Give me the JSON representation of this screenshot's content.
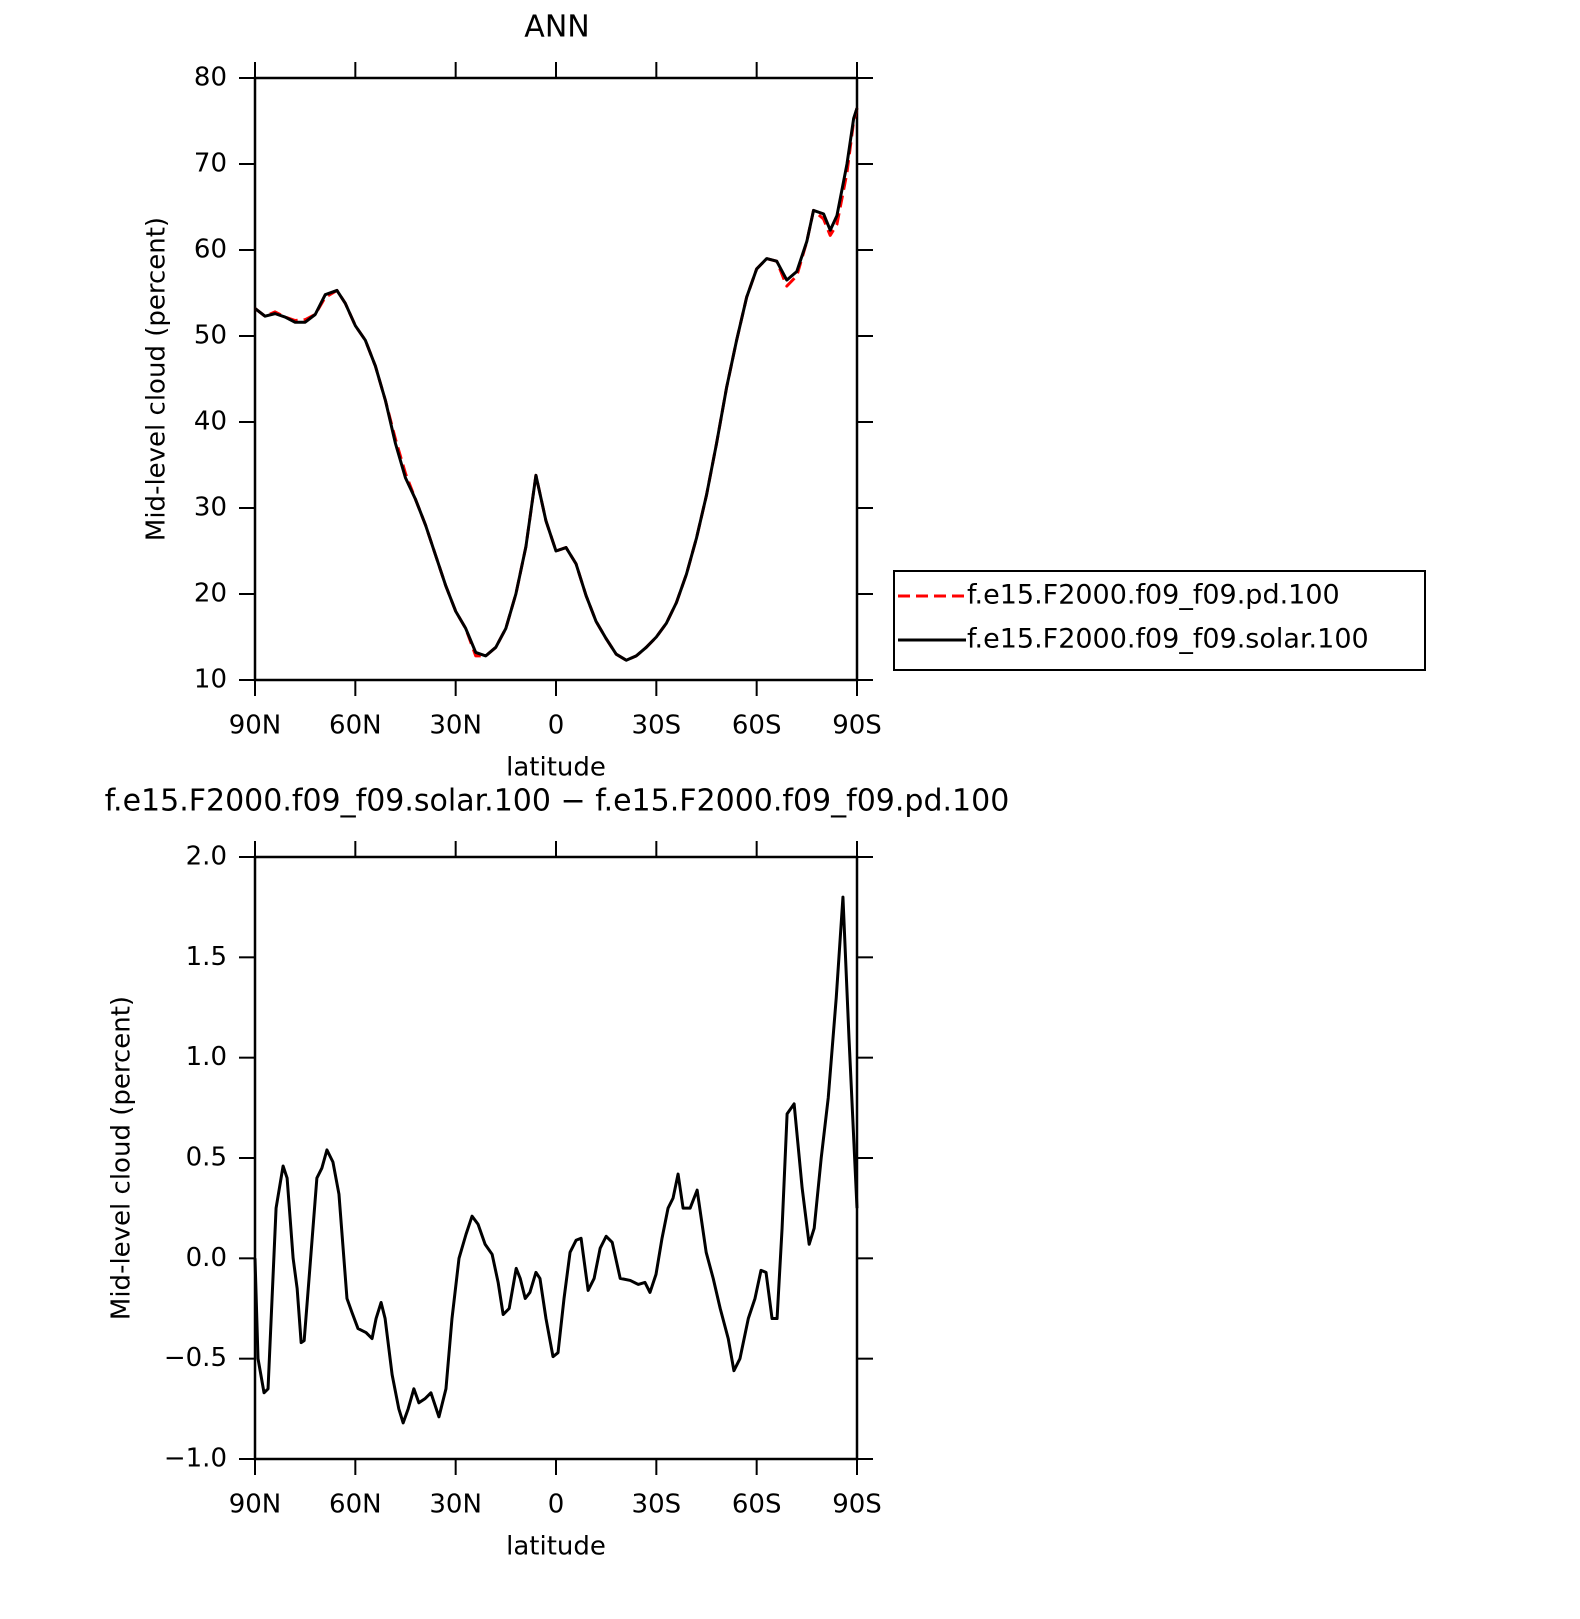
{
  "chart_data": [
    {
      "type": "line",
      "title": "ANN",
      "xlabel": "latitude",
      "ylabel": "Mid-level cloud (percent)",
      "x": [
        90,
        87,
        84,
        81,
        78,
        75,
        72,
        69,
        65.5,
        63,
        60,
        57,
        54,
        51,
        48,
        45,
        42,
        39,
        36,
        33,
        30,
        27,
        24,
        21,
        18,
        15,
        12,
        9,
        6,
        3,
        0,
        -3,
        -6,
        -9,
        -12,
        -15,
        -18,
        -21,
        -24,
        -27,
        -30,
        -33,
        -36,
        -39,
        -42,
        -45,
        -48,
        -51,
        -54,
        -57,
        -60,
        -63,
        -66,
        -69,
        -72,
        -75,
        -77,
        -80,
        -82,
        -84,
        -87,
        -89,
        -90
      ],
      "series": [
        {
          "name": "f.e15.F2000.f09_f09.pd.100",
          "color": "#ff0000",
          "linestyle": "dashed",
          "values": [
            53.2,
            52.3,
            52.8,
            52.2,
            51.8,
            51.9,
            52.5,
            54.5,
            55.3,
            53.8,
            51.2,
            49.5,
            46.5,
            42.5,
            38,
            34,
            31,
            28,
            24.5,
            21,
            18,
            16,
            12.8,
            12.8,
            13.8,
            16,
            20,
            25.5,
            33.8,
            28.5,
            25,
            25.4,
            23.5,
            19.8,
            16.8,
            14.8,
            13,
            12.3,
            12.8,
            13.8,
            15,
            16.6,
            19,
            22.3,
            26.5,
            31.5,
            37.5,
            44,
            49.5,
            54.5,
            57.8,
            59,
            58.7,
            55.8,
            57,
            61,
            64.6,
            63.6,
            61.7,
            63,
            69,
            75,
            76.5
          ]
        },
        {
          "name": "f.e15.F2000.f09_f09.solar.100",
          "color": "#000000",
          "linestyle": "solid",
          "values": [
            53.2,
            52.3,
            52.6,
            52.2,
            51.6,
            51.6,
            52.5,
            54.8,
            55.3,
            53.8,
            51.2,
            49.5,
            46.5,
            42.5,
            37.5,
            33.5,
            31,
            28,
            24.5,
            21,
            18,
            16,
            13.2,
            12.8,
            13.8,
            16,
            20,
            25.5,
            33.8,
            28.5,
            25,
            25.4,
            23.5,
            19.8,
            16.8,
            14.8,
            13,
            12.3,
            12.8,
            13.8,
            15,
            16.6,
            19,
            22.3,
            26.5,
            31.5,
            37.5,
            44,
            49.5,
            54.5,
            57.8,
            59,
            58.7,
            56.5,
            57.5,
            61,
            64.6,
            64.2,
            62.3,
            64,
            70,
            75.3,
            76.5
          ]
        }
      ],
      "xlim": [
        90,
        -90
      ],
      "xticks": [
        {
          "value": 90,
          "label": "90N"
        },
        {
          "value": 60,
          "label": "60N"
        },
        {
          "value": 30,
          "label": "30N"
        },
        0,
        {
          "value": -30,
          "label": "30S"
        },
        {
          "value": -60,
          "label": "60S"
        },
        {
          "value": -90,
          "label": "90S"
        }
      ],
      "ylim": [
        10,
        80
      ],
      "yticks": [
        10,
        20,
        30,
        40,
        50,
        60,
        70,
        80
      ],
      "legend": "right"
    },
    {
      "type": "line",
      "title": "f.e15.F2000.f09_f09.solar.100 − f.e15.F2000.f09_f09.pd.100",
      "xlabel": "latitude",
      "ylabel": "Mid-level cloud (percent)",
      "x": [
        90,
        89.1,
        87.3,
        86.1,
        84.9,
        83.7,
        81.6,
        80.4,
        78.6,
        77.4,
        76.2,
        75.3,
        73.6,
        71.5,
        70,
        68.5,
        66.7,
        64.9,
        62.5,
        61,
        59.2,
        56.8,
        55,
        53.8,
        52.3,
        51.1,
        49,
        47,
        45.7,
        44.2,
        42.5,
        41,
        39.2,
        37.4,
        35,
        32.9,
        31.1,
        29,
        26.9,
        25.1,
        23.3,
        21.2,
        19.1,
        17.3,
        15.8,
        14,
        11.9,
        10.7,
        9.2,
        7.8,
        6,
        4.8,
        3,
        0.9,
        -0.6,
        -2.4,
        -4.2,
        -6,
        -7.5,
        -9.6,
        -11.4,
        -13.2,
        -15,
        -16.8,
        -19.2,
        -22.2,
        -24.6,
        -26.6,
        -28.1,
        -29.9,
        -31.7,
        -33.5,
        -35,
        -36.5,
        -38,
        -40.1,
        -42.2,
        -44.9,
        -47,
        -49.1,
        -51.5,
        -53.2,
        -55,
        -57.5,
        -59.5,
        -61.3,
        -62.8,
        -64.6,
        -66.1,
        -67.6,
        -69.1,
        -71.2,
        -73.6,
        -75.7,
        -77.2,
        -79.3,
        -81.4,
        -83.8,
        -85.8,
        -87.6,
        -90
      ],
      "series": [
        {
          "color": "#000000",
          "linestyle": "solid",
          "values": [
            0,
            -0.5,
            -0.67,
            -0.65,
            -0.2,
            0.25,
            0.46,
            0.4,
            0,
            -0.15,
            -0.42,
            -0.41,
            -0.05,
            0.4,
            0.45,
            0.54,
            0.48,
            0.32,
            -0.2,
            -0.27,
            -0.35,
            -0.37,
            -0.4,
            -0.3,
            -0.22,
            -0.3,
            -0.58,
            -0.75,
            -0.82,
            -0.75,
            -0.65,
            -0.72,
            -0.7,
            -0.67,
            -0.79,
            -0.65,
            -0.3,
            0,
            0.12,
            0.21,
            0.17,
            0.07,
            0.02,
            -0.12,
            -0.28,
            -0.25,
            -0.05,
            -0.1,
            -0.2,
            -0.17,
            -0.07,
            -0.1,
            -0.3,
            -0.49,
            -0.47,
            -0.2,
            0.03,
            0.09,
            0.1,
            -0.16,
            -0.1,
            0.05,
            0.11,
            0.08,
            -0.1,
            -0.11,
            -0.13,
            -0.12,
            -0.17,
            -0.08,
            0.1,
            0.25,
            0.3,
            0.42,
            0.25,
            0.25,
            0.34,
            0.03,
            -0.1,
            -0.25,
            -0.4,
            -0.56,
            -0.5,
            -0.3,
            -0.2,
            -0.06,
            -0.07,
            -0.3,
            -0.3,
            0.15,
            0.72,
            0.77,
            0.35,
            0.07,
            0.15,
            0.5,
            0.8,
            1.3,
            1.8,
            1.1,
            0.25
          ]
        }
      ],
      "xlim": [
        90,
        -90
      ],
      "xticks": [
        {
          "value": 90,
          "label": "90N"
        },
        {
          "value": 60,
          "label": "60N"
        },
        {
          "value": 30,
          "label": "30N"
        },
        0,
        {
          "value": -30,
          "label": "30S"
        },
        {
          "value": -60,
          "label": "60S"
        },
        {
          "value": -90,
          "label": "90S"
        }
      ],
      "ylim": [
        -1,
        2
      ],
      "yticks": [
        {
          "value": -1,
          "label": "−1.0"
        },
        {
          "value": -0.5,
          "label": "−0.5"
        },
        {
          "value": 0,
          "label": "0.0"
        },
        {
          "value": 0.5,
          "label": "0.5"
        },
        {
          "value": 1,
          "label": "1.0"
        },
        {
          "value": 1.5,
          "label": "1.5"
        },
        {
          "value": 2,
          "label": "2.0"
        }
      ]
    }
  ]
}
